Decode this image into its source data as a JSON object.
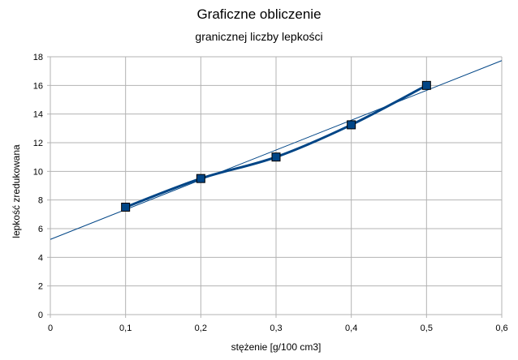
{
  "chart_data": {
    "type": "scatter",
    "title": "Graficzne obliczenie",
    "subtitle": "granicznej liczby lepkości",
    "xlabel": "stężenie [g/100 cm3]",
    "ylabel": "lepkość zredukowana",
    "xlim": [
      0,
      0.6
    ],
    "ylim": [
      0,
      18
    ],
    "x_ticks": [
      "0",
      "0,1",
      "0,2",
      "0,3",
      "0,4",
      "0,5",
      "0,6"
    ],
    "y_ticks": [
      "0",
      "2",
      "4",
      "6",
      "8",
      "10",
      "12",
      "14",
      "16",
      "18"
    ],
    "grid": true,
    "series": [
      {
        "x": [
          0.1,
          0.2,
          0.3,
          0.4,
          0.5
        ],
        "y": [
          7.5,
          9.5,
          11.0,
          13.25,
          16.0
        ],
        "marker": "square",
        "color": "#004586",
        "smooth_line": true
      }
    ],
    "trendline": {
      "type": "linear",
      "color": "#004586",
      "intercept": 5.25,
      "slope": 20.8
    }
  }
}
